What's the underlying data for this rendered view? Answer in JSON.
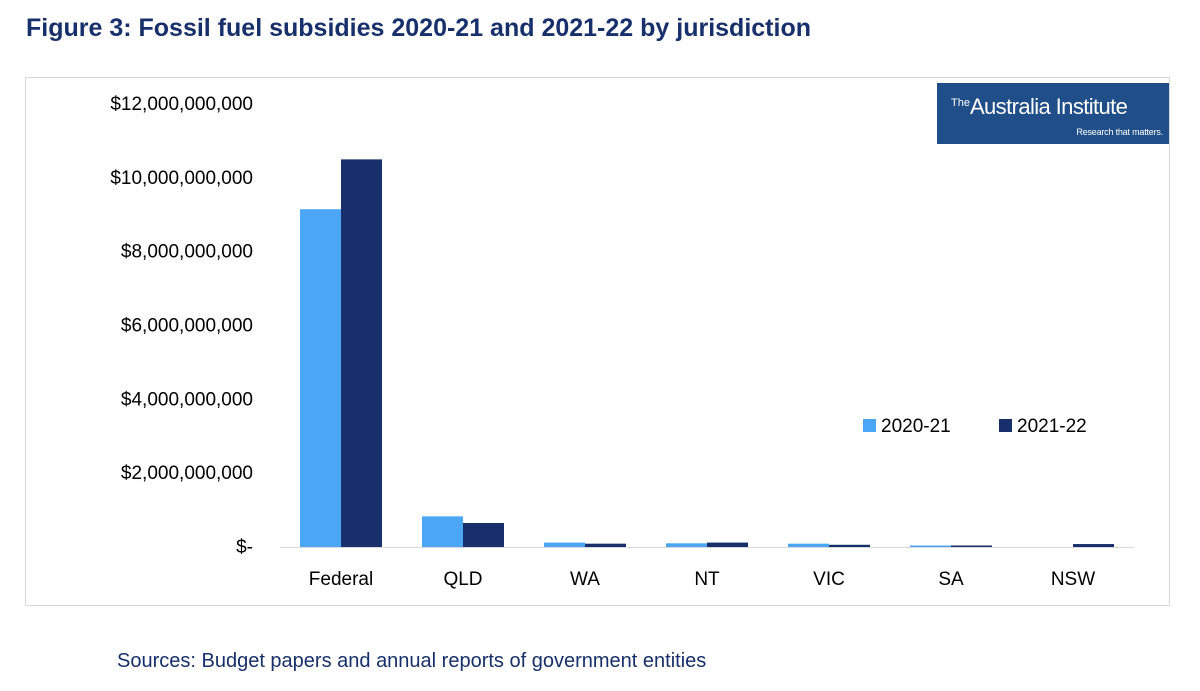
{
  "figure_title": "Figure 3: Fossil fuel subsidies 2020-21 and 2021-22 by jurisdiction",
  "logo": {
    "main_prefix": "The",
    "main_text": "Australia Institute",
    "tagline": "Research that matters."
  },
  "sources": "Sources: Budget papers and annual reports of government entities",
  "colors": {
    "series_2020_21": "#4ba6f5",
    "series_2021_22": "#17306b",
    "title": "#17306b",
    "logo_bg": "#1f4e89"
  },
  "chart_data": {
    "type": "bar",
    "title": "Figure 3: Fossil fuel subsidies 2020-21 and 2021-22 by jurisdiction",
    "xlabel": "",
    "ylabel": "",
    "categories": [
      "Federal",
      "QLD",
      "WA",
      "NT",
      "VIC",
      "SA",
      "NSW"
    ],
    "series": [
      {
        "name": "2020-21",
        "values": [
          9150000000,
          830000000,
          120000000,
          100000000,
          90000000,
          10000000,
          0
        ]
      },
      {
        "name": "2021-22",
        "values": [
          10500000000,
          650000000,
          90000000,
          120000000,
          60000000,
          20000000,
          80000000
        ]
      }
    ],
    "ylim": [
      0,
      12000000000
    ],
    "y_ticks": [
      0,
      2000000000,
      4000000000,
      6000000000,
      8000000000,
      10000000000,
      12000000000
    ],
    "y_tick_labels": [
      "$-",
      "$2,000,000,000",
      "$4,000,000,000",
      "$6,000,000,000",
      "$8,000,000,000",
      "$10,000,000,000",
      "$12,000,000,000"
    ],
    "grid": false,
    "legend_position": "right-middle"
  }
}
